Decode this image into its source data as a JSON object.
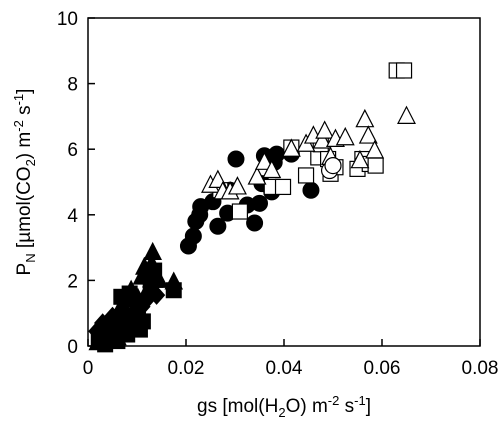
{
  "chart_data": {
    "type": "scatter",
    "xlabel_parts": {
      "a": "gs [mol(H",
      "sub": "2",
      "b": "O) m",
      "sup1": "-2",
      "c": " s",
      "sup2": "-1",
      "d": "]"
    },
    "ylabel_parts": {
      "a": "P",
      "sub1": "N",
      "b": " [µmol(CO",
      "sub2": "2",
      "c": ") m",
      "sup1": "-2",
      "d": " s",
      "sup2": "-1",
      "e": "]"
    },
    "xlim": [
      0,
      0.08
    ],
    "ylim": [
      0,
      10
    ],
    "x_ticks": [
      0,
      0.02,
      0.04,
      0.06,
      0.08
    ],
    "y_ticks": [
      0,
      2,
      4,
      6,
      8,
      10
    ],
    "x_tick_labels": [
      "0",
      "0.02",
      "0.04",
      "0.06",
      "0.08"
    ],
    "y_tick_labels": [
      "0",
      "2",
      "4",
      "6",
      "8",
      "10"
    ],
    "grid": false,
    "series": [
      {
        "marker": "filled-circle",
        "color": "#000000",
        "points": [
          [
            0.0205,
            3.05
          ],
          [
            0.0215,
            3.35
          ],
          [
            0.022,
            3.8
          ],
          [
            0.0228,
            4.0
          ],
          [
            0.023,
            4.25
          ],
          [
            0.0255,
            4.4
          ],
          [
            0.0265,
            3.65
          ],
          [
            0.0285,
            4.05
          ],
          [
            0.029,
            4.75
          ],
          [
            0.0302,
            5.7
          ],
          [
            0.0325,
            4.3
          ],
          [
            0.034,
            3.75
          ],
          [
            0.035,
            4.35
          ],
          [
            0.0355,
            4.95
          ],
          [
            0.036,
            5.8
          ],
          [
            0.0375,
            4.7
          ],
          [
            0.038,
            5.6
          ],
          [
            0.0385,
            5.85
          ],
          [
            0.0415,
            5.85
          ],
          [
            0.0455,
            4.75
          ]
        ]
      },
      {
        "marker": "filled-triangle",
        "color": "#000000",
        "points": [
          [
            0.002,
            0.1
          ],
          [
            0.0025,
            0.35
          ],
          [
            0.003,
            0.2
          ],
          [
            0.0038,
            0.5
          ],
          [
            0.0045,
            0.3
          ],
          [
            0.005,
            0.7
          ],
          [
            0.0055,
            0.45
          ],
          [
            0.006,
            0.25
          ],
          [
            0.0062,
            0.9
          ],
          [
            0.0068,
            1.2
          ],
          [
            0.007,
            0.6
          ],
          [
            0.0072,
            0.4
          ],
          [
            0.008,
            1.0
          ],
          [
            0.0083,
            1.4
          ],
          [
            0.0088,
            1.7
          ],
          [
            0.009,
            0.8
          ],
          [
            0.0095,
            1.1
          ],
          [
            0.0102,
            1.45
          ],
          [
            0.011,
            2.1
          ],
          [
            0.0115,
            2.4
          ],
          [
            0.012,
            1.65
          ],
          [
            0.0125,
            2.2
          ],
          [
            0.013,
            2.5
          ],
          [
            0.0132,
            2.85
          ],
          [
            0.0135,
            2.0
          ],
          [
            0.0145,
            2.0
          ],
          [
            0.0175,
            1.95
          ]
        ]
      },
      {
        "marker": "filled-diamond",
        "color": "#000000",
        "points": [
          [
            0.0018,
            0.45
          ],
          [
            0.003,
            0.7
          ],
          [
            0.005,
            0.9
          ],
          [
            0.0065,
            0.6
          ],
          [
            0.008,
            0.85
          ],
          [
            0.011,
            1.2
          ],
          [
            0.0125,
            1.5
          ],
          [
            0.014,
            1.55
          ],
          [
            0.0128,
            1.8
          ]
        ]
      },
      {
        "marker": "filled-square",
        "color": "#000000",
        "points": [
          [
            0.0022,
            0.2
          ],
          [
            0.0035,
            0.05
          ],
          [
            0.0045,
            0.25
          ],
          [
            0.005,
            0.4
          ],
          [
            0.006,
            0.15
          ],
          [
            0.0065,
            0.55
          ],
          [
            0.0068,
            1.5
          ],
          [
            0.0072,
            0.8
          ],
          [
            0.008,
            0.35
          ],
          [
            0.0085,
            1.6
          ],
          [
            0.0092,
            0.65
          ],
          [
            0.0098,
            0.9
          ],
          [
            0.0102,
            1.15
          ],
          [
            0.0106,
            0.5
          ],
          [
            0.0112,
            0.75
          ],
          [
            0.0128,
            1.95
          ],
          [
            0.0135,
            2.3
          ],
          [
            0.0175,
            1.7
          ]
        ]
      },
      {
        "marker": "open-square",
        "color": "#000000",
        "points": [
          [
            0.027,
            4.75
          ],
          [
            0.031,
            4.1
          ],
          [
            0.0375,
            4.85
          ],
          [
            0.0398,
            4.85
          ],
          [
            0.0415,
            6.05
          ],
          [
            0.0445,
            5.2
          ],
          [
            0.047,
            5.75
          ],
          [
            0.0475,
            6.15
          ],
          [
            0.049,
            5.7
          ],
          [
            0.0495,
            5.25
          ],
          [
            0.0505,
            5.45
          ],
          [
            0.055,
            5.4
          ],
          [
            0.056,
            5.7
          ],
          [
            0.0575,
            5.55
          ],
          [
            0.0587,
            5.5
          ],
          [
            0.063,
            8.4
          ],
          [
            0.0645,
            8.4
          ]
        ]
      },
      {
        "marker": "open-triangle",
        "color": "#000000",
        "points": [
          [
            0.025,
            4.9
          ],
          [
            0.0265,
            5.05
          ],
          [
            0.0275,
            4.7
          ],
          [
            0.029,
            4.7
          ],
          [
            0.0305,
            4.85
          ],
          [
            0.0345,
            5.15
          ],
          [
            0.036,
            5.6
          ],
          [
            0.0375,
            5.35
          ],
          [
            0.0415,
            6.0
          ],
          [
            0.0445,
            6.15
          ],
          [
            0.046,
            6.4
          ],
          [
            0.0478,
            6.25
          ],
          [
            0.0483,
            6.55
          ],
          [
            0.0495,
            5.75
          ],
          [
            0.0505,
            6.3
          ],
          [
            0.0525,
            6.35
          ],
          [
            0.0555,
            5.65
          ],
          [
            0.0565,
            6.9
          ],
          [
            0.0572,
            6.4
          ],
          [
            0.0585,
            5.95
          ],
          [
            0.065,
            7.0
          ]
        ]
      },
      {
        "marker": "open-circle",
        "color": "#000000",
        "points": [
          [
            0.0493,
            5.35
          ],
          [
            0.05,
            5.5
          ]
        ]
      }
    ]
  }
}
